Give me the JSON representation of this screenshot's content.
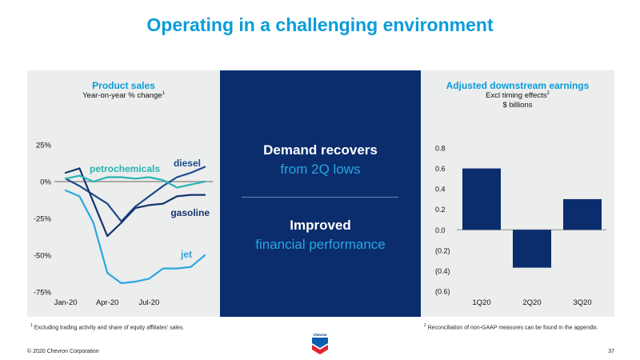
{
  "page_title": "Operating in a challenging environment",
  "left_panel": {
    "title": "Product sales",
    "subtitle": "Year-on-year % change",
    "subtitle_sup": "1",
    "footnote_num": "1",
    "footnote": "Excluding trading activity and share of equity affiliates' sales."
  },
  "middle_panel": {
    "line1_bold": "Demand recovers",
    "line1_light": "from 2Q lows",
    "line2_bold": "Improved",
    "line2_light": "financial performance"
  },
  "right_panel": {
    "title": "Adjusted downstream earnings",
    "subtitle1": "Excl timing effects",
    "subtitle1_sup": "2",
    "subtitle2": "$ billions",
    "footnote_num": "2",
    "footnote": "Reconciliation of non-GAAP measures can be found in the appendix."
  },
  "footer": {
    "copyright": "© 2020 Chevron Corporation",
    "page_number": "37",
    "logo_text": "Chevron"
  },
  "colors": {
    "title_blue": "#0a9cda",
    "navy": "#0b2d6e",
    "panel_gray": "#eceded",
    "diesel": "#1a4b8c",
    "gasoline": "#16336e",
    "jet": "#2aa6e0",
    "petrochemicals": "#26b5b5",
    "bar": "#0b2d6e"
  },
  "chart_data": [
    {
      "type": "line",
      "title": "Product sales",
      "subtitle": "Year-on-year % change",
      "x": [
        1,
        2,
        3,
        4,
        5,
        6,
        7,
        8,
        9,
        10,
        11
      ],
      "x_tick_labels": [
        {
          "x": 1,
          "label": "Jan-20"
        },
        {
          "x": 4,
          "label": "Apr-20"
        },
        {
          "x": 7,
          "label": "Jul-20"
        }
      ],
      "ylim": [
        -75,
        25
      ],
      "y_ticks": [
        {
          "value": 25,
          "label": "25%"
        },
        {
          "value": 0,
          "label": "0%"
        },
        {
          "value": -25,
          "label": "-25%"
        },
        {
          "value": -50,
          "label": "-50%"
        },
        {
          "value": -75,
          "label": "-75%"
        }
      ],
      "zero_line": true,
      "series": [
        {
          "name": "diesel",
          "color": "#1a4b8c",
          "values": [
            2,
            -3,
            -9,
            -15,
            -27,
            -17,
            -10,
            -3,
            3,
            6,
            10
          ]
        },
        {
          "name": "gasoline",
          "color": "#16336e",
          "values": [
            6,
            9,
            -14,
            -37,
            -28,
            -18,
            -16,
            -15,
            -10,
            -9,
            -9
          ]
        },
        {
          "name": "jet",
          "color": "#2aa6e0",
          "values": [
            -6,
            -10,
            -28,
            -62,
            -69,
            -68,
            -66,
            -59,
            -59,
            -58,
            -50
          ]
        },
        {
          "name": "petrochemicals",
          "color": "#26b5b5",
          "values": [
            2,
            4,
            0,
            3,
            3,
            2,
            3,
            1,
            -4,
            -2,
            0
          ]
        }
      ]
    },
    {
      "type": "bar",
      "title": "Adjusted downstream earnings",
      "subtitle": "Excl timing effects $ billions",
      "categories": [
        "1Q20",
        "2Q20",
        "3Q20"
      ],
      "values": [
        0.6,
        -0.37,
        0.3
      ],
      "ylim": [
        -0.6,
        0.8
      ],
      "y_ticks": [
        {
          "value": 0.8,
          "label": "0.8"
        },
        {
          "value": 0.6,
          "label": "0.6"
        },
        {
          "value": 0.4,
          "label": "0.4"
        },
        {
          "value": 0.2,
          "label": "0.2"
        },
        {
          "value": 0.0,
          "label": "0.0"
        },
        {
          "value": -0.2,
          "label": "(0.2)"
        },
        {
          "value": -0.4,
          "label": "(0.4)"
        },
        {
          "value": -0.6,
          "label": "(0.6)"
        }
      ]
    }
  ]
}
